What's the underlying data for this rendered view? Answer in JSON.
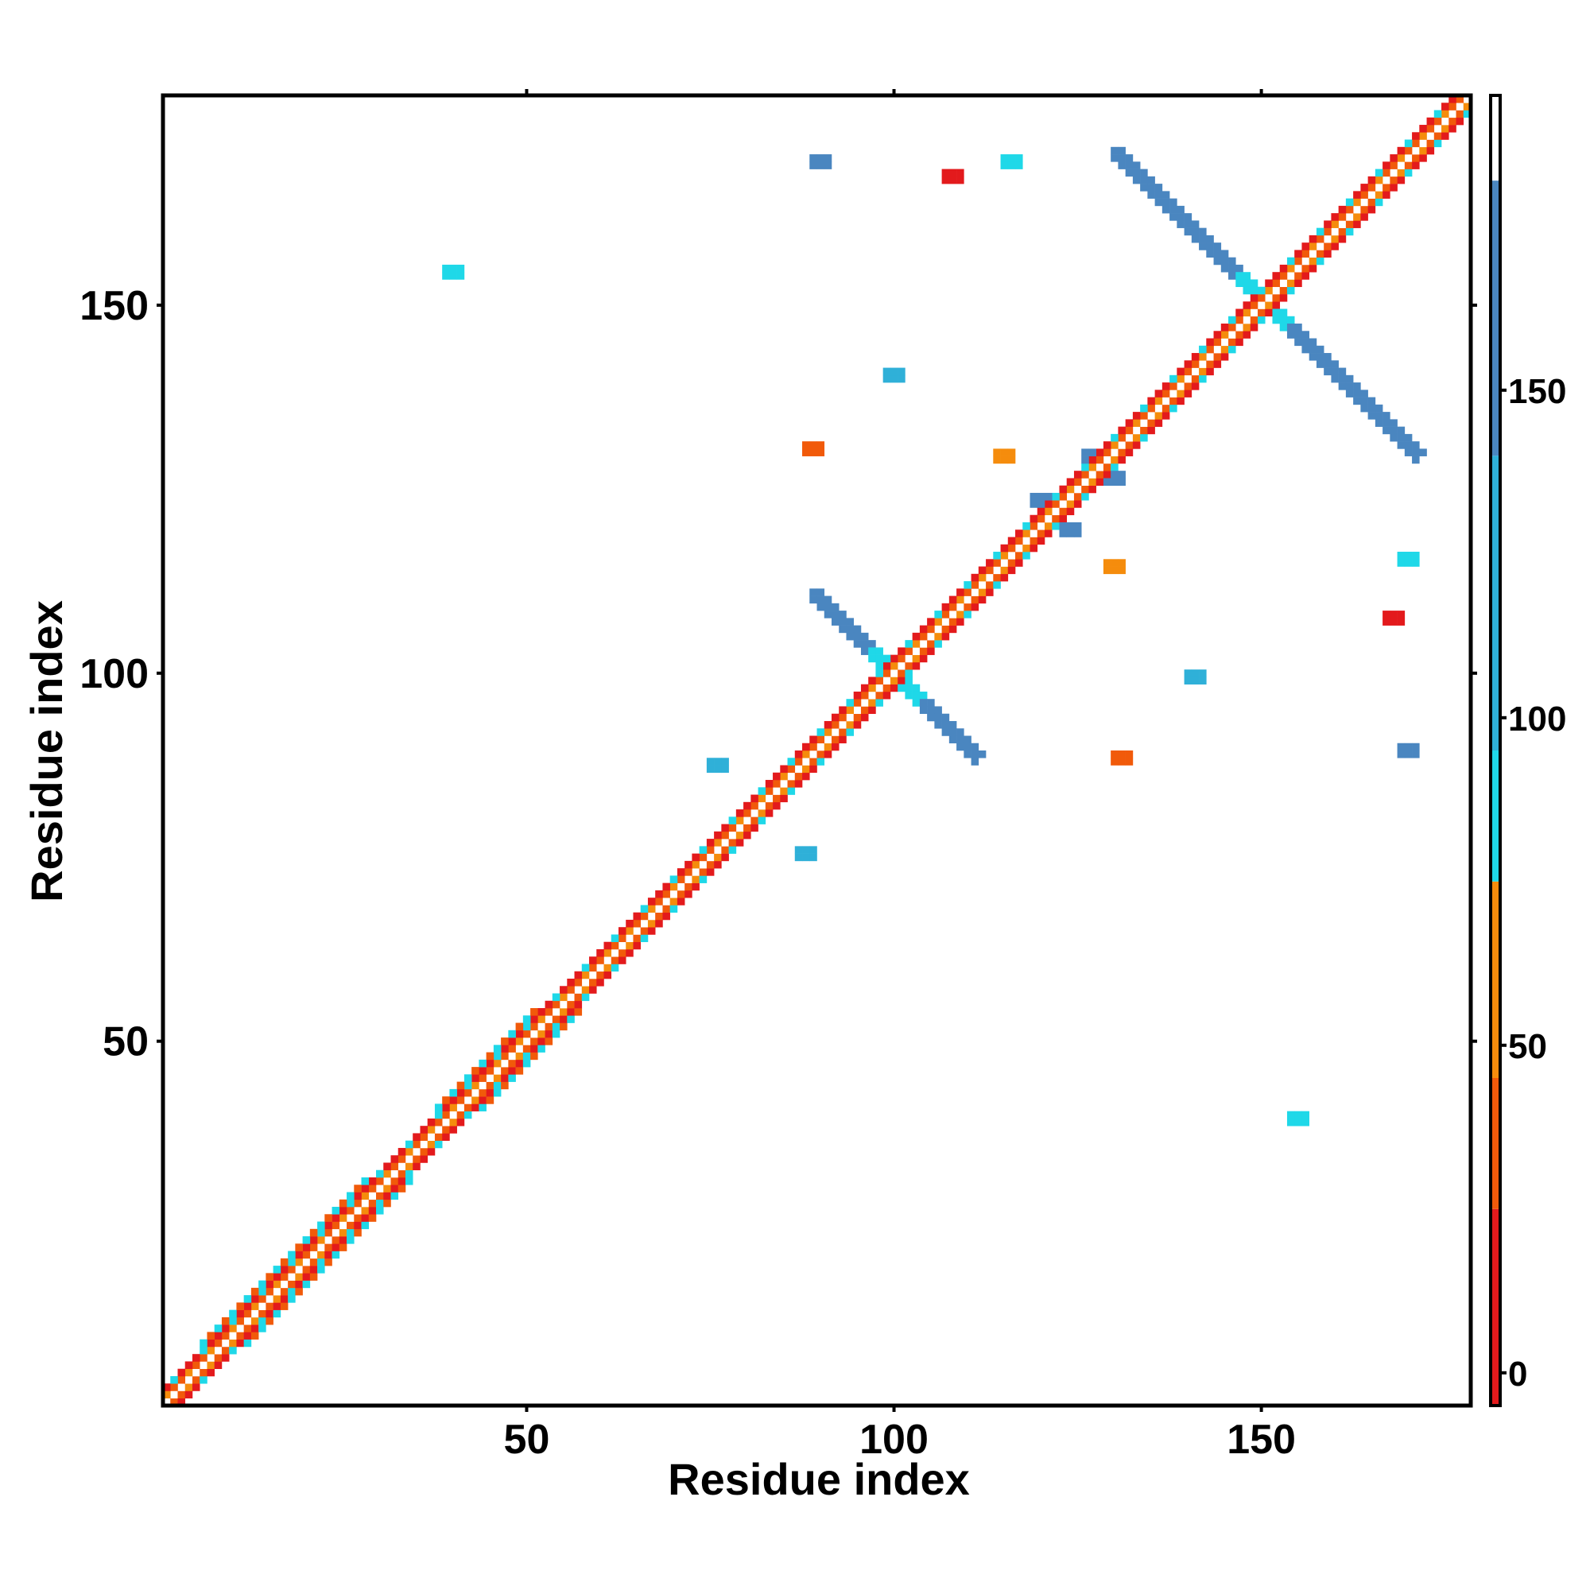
{
  "chart_data": {
    "type": "heatmap",
    "title": "",
    "xlabel": "Residue index",
    "ylabel": "Residue index",
    "xlim": [
      1,
      178
    ],
    "ylim": [
      1,
      178
    ],
    "x_ticks": [
      50,
      100,
      150
    ],
    "y_ticks": [
      50,
      100,
      150
    ],
    "grid": false,
    "legend": "right colorbar",
    "colorbar": {
      "ticks": [
        0,
        50,
        100,
        150
      ],
      "range": [
        -5,
        195
      ],
      "bands": [
        {
          "from": -5,
          "to": 25,
          "color": "#e31a1c"
        },
        {
          "from": 25,
          "to": 45,
          "color": "#f15a0a"
        },
        {
          "from": 45,
          "to": 75,
          "color": "#f58c0c"
        },
        {
          "from": 75,
          "to": 95,
          "color": "#1fd8e8"
        },
        {
          "from": 95,
          "to": 140,
          "color": "#2fb0d8"
        },
        {
          "from": 140,
          "to": 182,
          "color": "#4a86c0"
        },
        {
          "from": 182,
          "to": 195,
          "color": "#ffffff"
        }
      ]
    },
    "features": [
      {
        "kind": "diagonal",
        "from": 1,
        "to": 178
      },
      {
        "kind": "antiparallel-strip",
        "center": [
          100,
          100
        ],
        "from": [
          89,
          111
        ],
        "to": [
          111,
          89
        ],
        "color": "#4a86c0"
      },
      {
        "kind": "antiparallel-strip",
        "center": [
          150,
          150
        ],
        "from": [
          130,
          171
        ],
        "to": [
          171,
          130
        ],
        "color": "#4a86c0"
      },
      {
        "kind": "patch",
        "x": 40,
        "y": 155,
        "color": "#1fd8e8"
      },
      {
        "kind": "patch",
        "x": 155,
        "y": 40,
        "color": "#1fd8e8"
      },
      {
        "kind": "patch",
        "x": 108,
        "y": 168,
        "color": "#e31a1c"
      },
      {
        "kind": "patch",
        "x": 168,
        "y": 108,
        "color": "#e31a1c"
      },
      {
        "kind": "patch",
        "x": 116,
        "y": 170,
        "color": "#1fd8e8"
      },
      {
        "kind": "patch",
        "x": 170,
        "y": 116,
        "color": "#1fd8e8"
      },
      {
        "kind": "patch",
        "x": 100,
        "y": 141,
        "color": "#2fb0d8"
      },
      {
        "kind": "patch",
        "x": 141,
        "y": 100,
        "color": "#2fb0d8"
      },
      {
        "kind": "patch",
        "x": 90,
        "y": 170,
        "color": "#4a86c0"
      },
      {
        "kind": "patch",
        "x": 170,
        "y": 90,
        "color": "#4a86c0"
      },
      {
        "kind": "patch",
        "x": 89,
        "y": 131,
        "color": "#f15a0a"
      },
      {
        "kind": "patch",
        "x": 131,
        "y": 89,
        "color": "#f15a0a"
      },
      {
        "kind": "patch",
        "x": 120,
        "y": 124,
        "color": "#4a86c0"
      },
      {
        "kind": "patch",
        "x": 124,
        "y": 120,
        "color": "#4a86c0"
      },
      {
        "kind": "patch",
        "x": 127,
        "y": 130,
        "color": "#4a86c0"
      },
      {
        "kind": "patch",
        "x": 130,
        "y": 127,
        "color": "#4a86c0"
      },
      {
        "kind": "patch",
        "x": 76,
        "y": 88,
        "color": "#2fb0d8"
      },
      {
        "kind": "patch",
        "x": 88,
        "y": 76,
        "color": "#2fb0d8"
      },
      {
        "kind": "patch",
        "x": 130,
        "y": 115,
        "color": "#f58c0c"
      },
      {
        "kind": "patch",
        "x": 115,
        "y": 130,
        "color": "#f58c0c"
      }
    ]
  }
}
